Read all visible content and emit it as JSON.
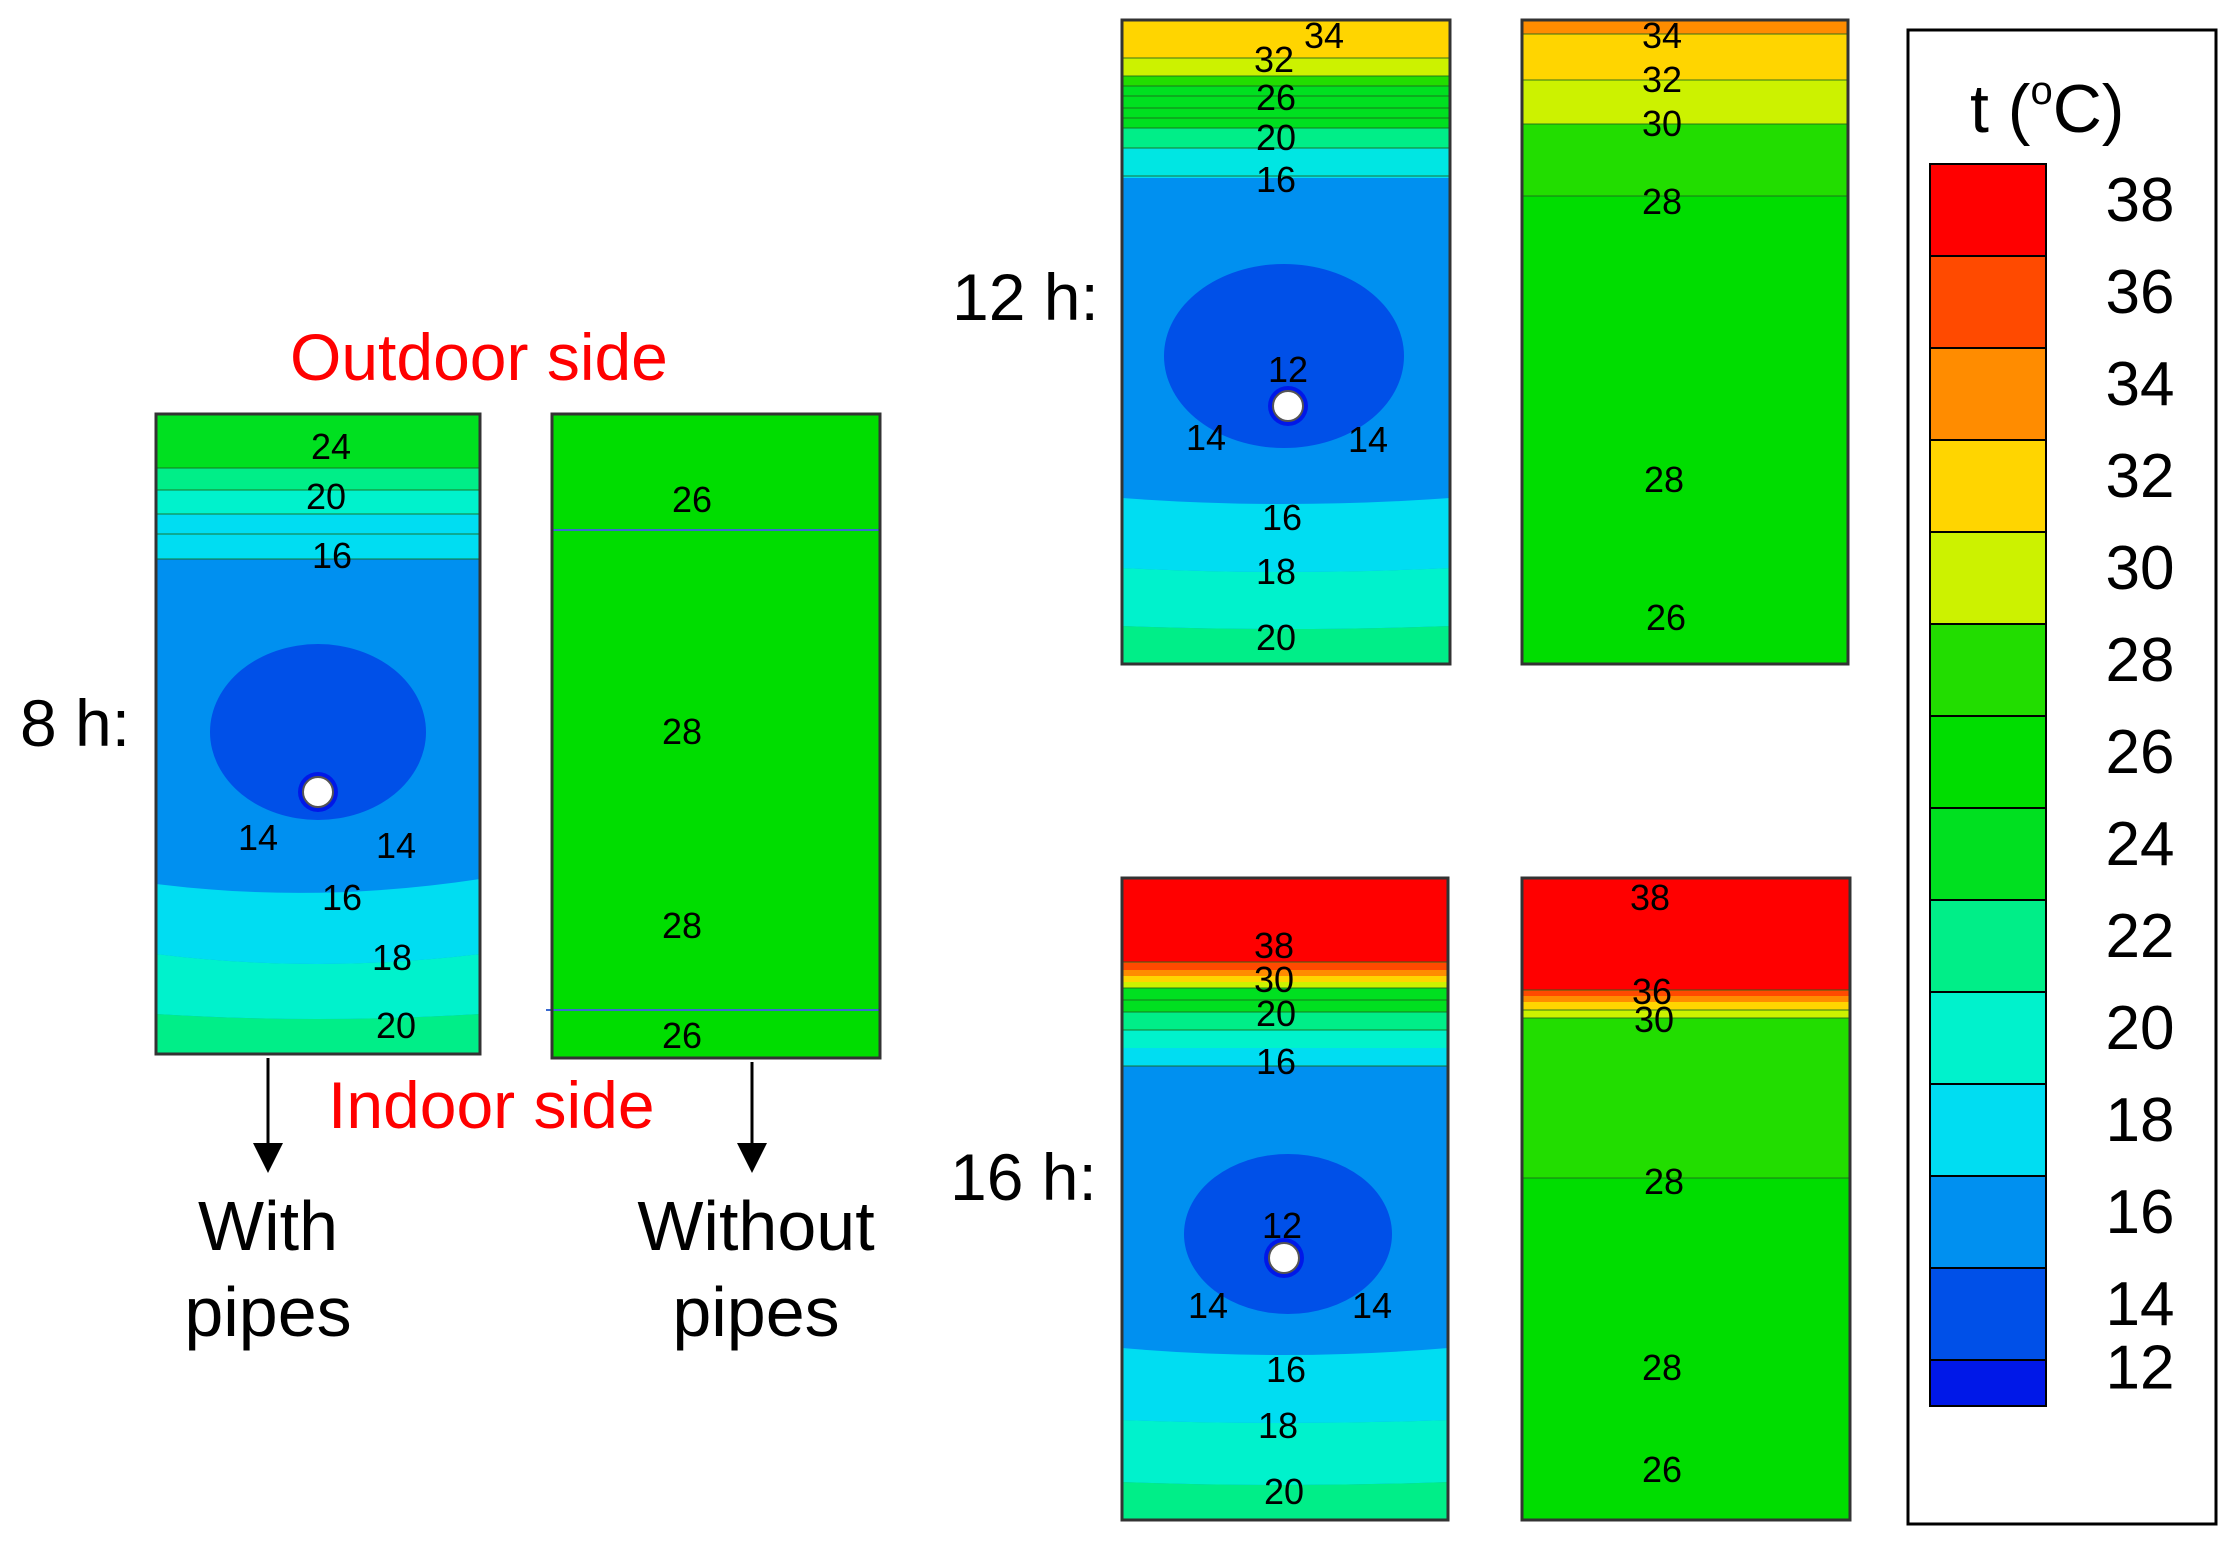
{
  "figure": {
    "time_labels": [
      "8 h:",
      "12 h:",
      "16 h:"
    ],
    "outdoor_label": "Outdoor side",
    "indoor_label": "Indoor side",
    "with_pipes_label": [
      "With",
      "pipes"
    ],
    "without_pipes_label": [
      "Without",
      "pipes"
    ]
  },
  "legend": {
    "title": "t (°C)",
    "title_parts": [
      "t (",
      "o",
      "C)"
    ],
    "ticks": [
      "38",
      "36",
      "34",
      "32",
      "30",
      "28",
      "26",
      "24",
      "22",
      "20",
      "18",
      "16",
      "14",
      "12"
    ],
    "colors": [
      "#ff0000",
      "#ff4a00",
      "#ff8c00",
      "#ffd500",
      "#ccf200",
      "#22dd00",
      "#00dd00",
      "#00e020",
      "#00ee88",
      "#00f2cc",
      "#00ddf2",
      "#0090f0",
      "#0050e8",
      "#0018e8"
    ]
  },
  "colors": {
    "c12": "#0018e8",
    "c14": "#0050e8",
    "c16": "#0090f0",
    "c18": "#00ddf2",
    "c20": "#00f2cc",
    "c22": "#00ee88",
    "c24": "#00e020",
    "c26_30": "#00dd00",
    "c32": "#ccf200",
    "c34": "#ffd500",
    "c36": "#ff8c00",
    "c38": "#ff0000"
  },
  "panels": {
    "h8_with": {
      "contour_labels": [
        "24",
        "20",
        "16",
        "14",
        "14",
        "16",
        "18",
        "20"
      ]
    },
    "h8_without": {
      "contour_labels": [
        "26",
        "28",
        "28",
        "26"
      ]
    },
    "h12_with": {
      "contour_labels": [
        "34",
        "32",
        "26",
        "20",
        "16",
        "12",
        "14",
        "14",
        "16",
        "18",
        "20"
      ]
    },
    "h12_without": {
      "contour_labels": [
        "34",
        "32",
        "30",
        "28",
        "28",
        "26"
      ]
    },
    "h16_with": {
      "contour_labels": [
        "38",
        "30",
        "20",
        "16",
        "12",
        "14",
        "14",
        "16",
        "18",
        "20"
      ]
    },
    "h16_without": {
      "contour_labels": [
        "38",
        "36",
        "30",
        "28",
        "28",
        "26"
      ]
    }
  }
}
